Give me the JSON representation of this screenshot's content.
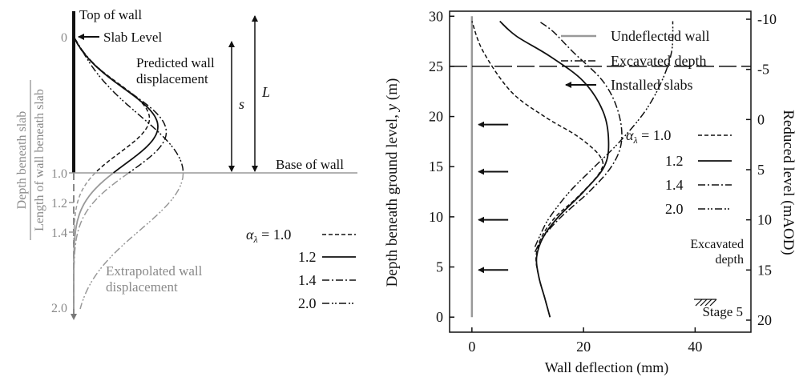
{
  "chart_data": [
    {
      "type": "line",
      "panel": "schematic",
      "annotations": {
        "top_of_wall": "Top of wall",
        "slab_level": "Slab Level",
        "predicted": [
          "Predicted wall",
          "displacement"
        ],
        "extrapolated": [
          "Extrapolated wall",
          "displacement"
        ],
        "base_of_wall": "Base of wall",
        "s_label": "s",
        "L_label": "L"
      },
      "ylabel_numerator": "Depth beneath slab",
      "ylabel_denominator": "Length of wall beneath slab",
      "y_ticks": [
        "0",
        "1.0",
        "1.2",
        "1.4",
        "2.0"
      ],
      "legend_title": "α",
      "legend_subscript": "λ",
      "legend_eq": " = ",
      "legend_labels": [
        "1.0",
        "1.2",
        "1.4",
        "2.0"
      ],
      "series": [
        {
          "name": "1.0",
          "peak_displacement": 0.9,
          "peak_depth": 0.6
        },
        {
          "name": "1.2",
          "peak_displacement": 1.0,
          "peak_depth": 0.66
        },
        {
          "name": "1.4",
          "peak_displacement": 1.1,
          "peak_depth": 0.7
        },
        {
          "name": "2.0",
          "peak_displacement": 1.3,
          "peak_depth": 1.0
        }
      ]
    },
    {
      "type": "line",
      "panel": "case-study",
      "xlabel": "Wall deflection (mm)",
      "ylabel": "Depth beneath ground level, y (m)",
      "ylabel_main": "Depth beneath ground level, ",
      "ylabel_var": "y",
      "ylabel_unit": " (m)",
      "y2label": "Reduced level (mAOD)",
      "xlim": [
        -4,
        50
      ],
      "ylim": [
        30.5,
        -1.5
      ],
      "y2lim": [
        -10,
        20
      ],
      "x_ticks": [
        "0",
        "20",
        "40"
      ],
      "y_ticks": [
        "0",
        "5",
        "10",
        "15",
        "20",
        "25",
        "30"
      ],
      "y2_ticks": [
        "20",
        "15",
        "10",
        "5",
        "0",
        "-5",
        "-10"
      ],
      "legend": [
        "Undeflected wall",
        "Excavated depth",
        "Installed slabs"
      ],
      "alpha_legend_title": "α",
      "alpha_legend_subscript": "λ",
      "alpha_legend_eq": " = ",
      "alpha_legend": [
        "1.0",
        "1.2",
        "1.4",
        "2.0"
      ],
      "excavated_depth_m": 25,
      "excavated_label": [
        "Excavated",
        "depth"
      ],
      "stage_label": "Stage 5",
      "slab_depths_m": [
        4.7,
        9.7,
        14.5,
        19.2
      ],
      "series": [
        {
          "name": "1.0",
          "x": [
            14,
            13,
            12,
            11.5,
            12.5,
            15,
            19,
            23,
            23,
            19,
            13,
            7,
            2,
            0
          ],
          "y": [
            0,
            2,
            4,
            6,
            8,
            10,
            12,
            14.5,
            16,
            18,
            20,
            22.5,
            26.5,
            29.5
          ]
        },
        {
          "name": "1.2",
          "x": [
            14,
            13,
            12,
            11.6,
            12.8,
            15.5,
            20,
            23.7,
            24.5,
            23.5,
            20,
            14,
            8,
            5
          ],
          "y": [
            0,
            2,
            4,
            6,
            8,
            10,
            12.5,
            15,
            17.5,
            20.5,
            23.5,
            26,
            28,
            29.5
          ]
        },
        {
          "name": "1.4",
          "x": [
            11.3,
            12.8,
            16,
            21,
            25,
            26.8,
            26.2,
            23.5,
            18,
            14.5,
            12
          ],
          "y": [
            6.5,
            8,
            10,
            12.5,
            15,
            17.5,
            20.5,
            23.5,
            26.5,
            28.5,
            29.5
          ]
        },
        {
          "name": "2.0",
          "x": [
            11.3,
            12.5,
            14,
            17.5,
            22,
            26.5,
            31,
            34,
            35.8,
            36
          ],
          "y": [
            7,
            8.5,
            10,
            12.5,
            15,
            17.5,
            20.5,
            23.5,
            26.5,
            29.5
          ]
        }
      ]
    }
  ]
}
